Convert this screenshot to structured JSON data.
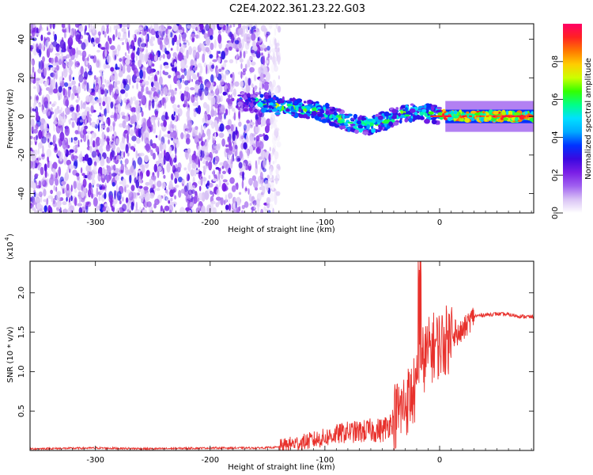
{
  "title": "C2E4.2022.361.23.22.G03",
  "chart_data": [
    {
      "type": "heatmap",
      "xlabel": "Height of straight line (km)",
      "ylabel": "Frequency (Hz)",
      "xlim": [
        -357,
        82
      ],
      "ylim": [
        -50,
        48
      ],
      "xticks": [
        -300,
        -200,
        -100,
        0
      ],
      "yticks": [
        -40,
        -20,
        0,
        20,
        40
      ],
      "colorbar": {
        "label": "Normalized spectral amplitude",
        "range": [
          0,
          1
        ],
        "ticks": [
          0.0,
          0.2,
          0.4,
          0.6,
          0.8
        ],
        "colormap": [
          "#ffffff",
          "#d9c3f5",
          "#a060f0",
          "#7a1ee6",
          "#3a08e0",
          "#0033ff",
          "#00aaff",
          "#00e0ff",
          "#00ff88",
          "#33ff00",
          "#ccff00",
          "#ffcc00",
          "#ff7700",
          "#ff2222",
          "#ff0066"
        ]
      },
      "regions": [
        {
          "description": "broadband noise",
          "x_range": [
            -357,
            -148
          ],
          "freq_range": [
            -50,
            48
          ],
          "amplitude": "low (0.05-0.3)"
        },
        {
          "description": "signal track",
          "x_range": [
            -175,
            82
          ],
          "freq_center": [
            [
              -175,
              8
            ],
            [
              -150,
              6
            ],
            [
              -120,
              4
            ],
            [
              -100,
              2
            ],
            [
              -80,
              -3
            ],
            [
              -60,
              -5
            ],
            [
              -40,
              0
            ],
            [
              -30,
              2
            ],
            [
              0,
              1
            ],
            [
              20,
              0
            ],
            [
              82,
              0
            ]
          ],
          "amplitude": "0.2-1.0"
        }
      ]
    },
    {
      "type": "line",
      "xlabel": "Height of straight line (km)",
      "ylabel": "SNR (10 * v/v)",
      "y_multiplier": "(x10^4)",
      "xlim": [
        -357,
        82
      ],
      "ylim": [
        0,
        2.4
      ],
      "xticks": [
        -300,
        -200,
        -100,
        0
      ],
      "yticks": [
        0.5,
        1.0,
        1.5,
        2.0
      ],
      "series": [
        {
          "color": "#e8312c",
          "x": [
            -357,
            -300,
            -250,
            -200,
            -160,
            -140,
            -130,
            -120,
            -110,
            -100,
            -90,
            -80,
            -70,
            -60,
            -50,
            -45,
            -40,
            -35,
            -30,
            -25,
            -20,
            -17,
            -15,
            -10,
            -5,
            0,
            5,
            10,
            15,
            20,
            25,
            30,
            40,
            50,
            60,
            70,
            82
          ],
          "y": [
            0.02,
            0.03,
            0.02,
            0.03,
            0.03,
            0.04,
            0.07,
            0.09,
            0.12,
            0.15,
            0.19,
            0.22,
            0.22,
            0.24,
            0.24,
            0.3,
            0.38,
            0.45,
            0.55,
            0.65,
            0.75,
            0.9,
            1.1,
            1.2,
            1.28,
            1.3,
            1.35,
            1.38,
            1.43,
            1.5,
            1.6,
            1.7,
            1.72,
            1.73,
            1.72,
            1.7,
            1.69
          ]
        }
      ]
    }
  ]
}
